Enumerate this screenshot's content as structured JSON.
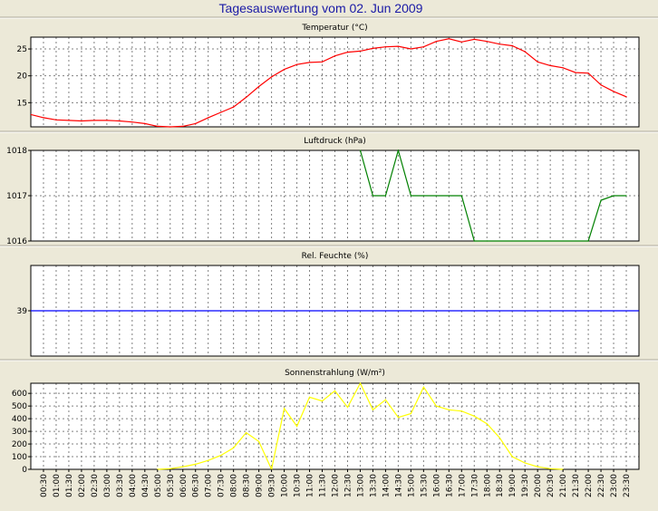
{
  "page_title": "Tagesauswertung vom 02. Jun 2009",
  "colors": {
    "background": "#ece9d8",
    "plot_background": "#ffffff",
    "title": "#1a1aa6",
    "temperature": "#ff0000",
    "pressure": "#008000",
    "humidity": "#0000ff",
    "radiation": "#ffff00",
    "grid": "#808080"
  },
  "x_axis": {
    "ticks": [
      "00:30",
      "01:00",
      "01:30",
      "02:00",
      "02:30",
      "03:00",
      "03:30",
      "04:00",
      "04:30",
      "05:00",
      "05:30",
      "06:00",
      "06:30",
      "07:00",
      "07:30",
      "08:00",
      "08:30",
      "09:00",
      "09:30",
      "10:00",
      "10:30",
      "11:00",
      "11:30",
      "12:00",
      "12:30",
      "13:00",
      "13:30",
      "14:00",
      "14:30",
      "15:00",
      "15:30",
      "16:00",
      "16:30",
      "17:00",
      "17:30",
      "18:00",
      "18:30",
      "19:00",
      "19:30",
      "20:00",
      "20:30",
      "21:00",
      "21:30",
      "22:00",
      "22:30",
      "23:00",
      "23:30"
    ]
  },
  "chart_data": [
    {
      "type": "line",
      "title": "Temperatur (°C)",
      "color": "#ff0000",
      "ylim": [
        10.5,
        27.2
      ],
      "yticks": [
        15,
        20,
        25
      ],
      "ytick_labels": [
        "15",
        "20",
        "25"
      ],
      "x": [
        "00:00",
        "00:30",
        "01:00",
        "01:30",
        "02:00",
        "02:30",
        "03:00",
        "03:30",
        "04:00",
        "04:30",
        "05:00",
        "05:30",
        "06:00",
        "06:30",
        "07:00",
        "07:30",
        "08:00",
        "08:30",
        "09:00",
        "09:30",
        "10:00",
        "10:30",
        "11:00",
        "11:30",
        "12:00",
        "12:30",
        "13:00",
        "13:30",
        "14:00",
        "14:30",
        "15:00",
        "15:30",
        "16:00",
        "16:30",
        "17:00",
        "17:30",
        "18:00",
        "18:30",
        "19:00",
        "19:30",
        "20:00",
        "20:30",
        "21:00",
        "21:30",
        "22:00",
        "22:30",
        "23:00",
        "23:30"
      ],
      "values": [
        12.8,
        12.2,
        11.8,
        11.7,
        11.6,
        11.7,
        11.7,
        11.6,
        11.4,
        11.1,
        10.6,
        10.5,
        10.6,
        11.1,
        12.2,
        13.2,
        14.2,
        16.0,
        18.0,
        19.8,
        21.2,
        22.1,
        22.5,
        22.6,
        23.7,
        24.4,
        24.6,
        25.1,
        25.4,
        25.5,
        25.0,
        25.4,
        26.4,
        26.9,
        26.3,
        26.8,
        26.4,
        25.9,
        25.6,
        24.5,
        22.6,
        21.9,
        21.5,
        20.6,
        20.5,
        18.3,
        17.1,
        16.1
      ]
    },
    {
      "type": "line",
      "title": "Luftdruck (hPa)",
      "color": "#008000",
      "ylim": [
        1016,
        1018
      ],
      "yticks": [
        1016,
        1017,
        1018
      ],
      "ytick_labels": [
        "1016",
        "1017",
        "1018"
      ],
      "x": [
        "13:00",
        "13:30",
        "14:00",
        "14:30",
        "15:00",
        "15:30",
        "16:00",
        "16:30",
        "17:00",
        "17:30",
        "18:00",
        "22:00",
        "22:30",
        "23:00",
        "23:30"
      ],
      "values": [
        1018,
        1017,
        1017,
        1018,
        1017,
        1017,
        1017,
        1017,
        1017,
        1016,
        1016,
        1016,
        1016.9,
        1017,
        1017
      ]
    },
    {
      "type": "line",
      "title": "Rel. Feuchte (%)",
      "color": "#0000ff",
      "ylim": [
        38,
        40
      ],
      "yticks": [
        39
      ],
      "ytick_labels": [
        "39"
      ],
      "x": [
        "00:00",
        "23:59"
      ],
      "values": [
        39,
        39
      ]
    },
    {
      "type": "line",
      "title": "Sonnenstrahlung (W/m²)",
      "color": "#ffff00",
      "ylim": [
        0,
        680
      ],
      "yticks": [
        0,
        100,
        200,
        300,
        400,
        500,
        600
      ],
      "ytick_labels": [
        "0",
        "100",
        "200",
        "300",
        "400",
        "500",
        "600"
      ],
      "x": [
        "05:00",
        "05:30",
        "06:00",
        "06:30",
        "07:00",
        "07:30",
        "08:00",
        "08:30",
        "09:00",
        "09:30",
        "10:00",
        "10:30",
        "11:00",
        "11:30",
        "12:00",
        "12:30",
        "13:00",
        "13:30",
        "14:00",
        "14:30",
        "15:00",
        "15:30",
        "16:00",
        "16:30",
        "17:00",
        "17:30",
        "18:00",
        "18:30",
        "19:00",
        "19:30",
        "20:00",
        "20:30",
        "21:00"
      ],
      "values": [
        0,
        5,
        20,
        40,
        70,
        110,
        170,
        290,
        220,
        0,
        480,
        340,
        570,
        540,
        620,
        490,
        680,
        470,
        550,
        410,
        440,
        650,
        500,
        470,
        460,
        420,
        360,
        250,
        100,
        50,
        20,
        5,
        0
      ]
    }
  ]
}
